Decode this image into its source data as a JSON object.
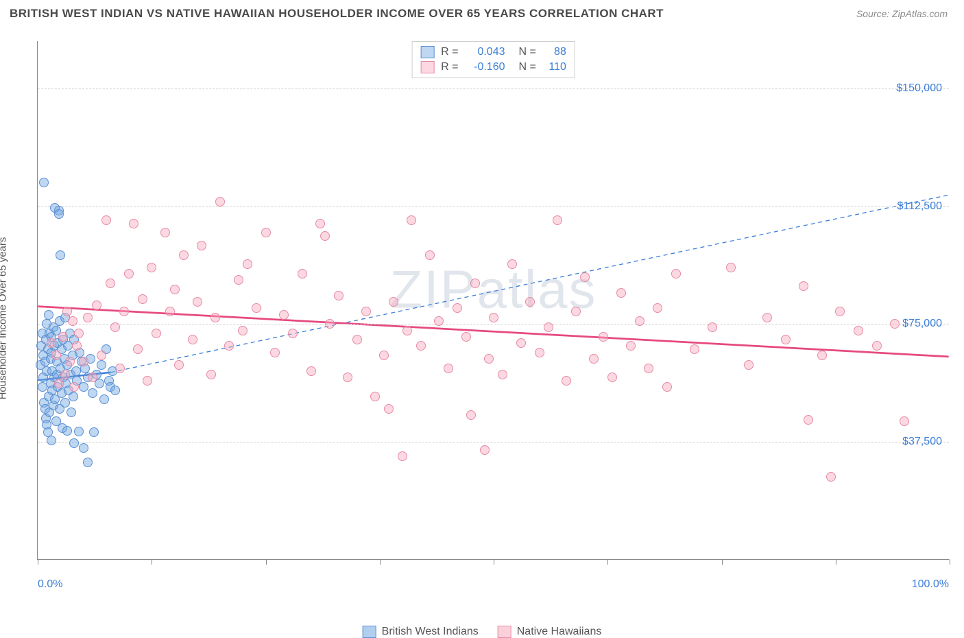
{
  "header": {
    "title": "BRITISH WEST INDIAN VS NATIVE HAWAIIAN HOUSEHOLDER INCOME OVER 65 YEARS CORRELATION CHART",
    "source": "Source: ZipAtlas.com"
  },
  "watermark": "ZIPatlas",
  "chart": {
    "type": "scatter",
    "background_color": "#ffffff",
    "grid_color": "#d0d0d0",
    "axis_color": "#888888",
    "label_color": "#3b7dd8",
    "label_fontsize": 16,
    "yaxis_title": "Householder Income Over 65 years",
    "yaxis_title_fontsize": 15,
    "xlim": [
      0,
      100
    ],
    "ylim": [
      0,
      165000
    ],
    "x_ticks": [
      0,
      12.5,
      25,
      37.5,
      50,
      62.5,
      75,
      87.5,
      100
    ],
    "x_tick_labels": {
      "0": "0.0%",
      "100": "100.0%"
    },
    "y_gridlines": [
      37500,
      75000,
      112500,
      150000
    ],
    "y_tick_labels": {
      "37500": "$37,500",
      "75000": "$75,000",
      "112500": "$112,500",
      "150000": "$150,000"
    },
    "marker_radius": 7,
    "marker_stroke_width": 1.2,
    "series": [
      {
        "name": "British West Indians",
        "fill_color": "rgba(114,166,225,0.45)",
        "stroke_color": "#5a8fd4",
        "r_value": "0.043",
        "n_value": "88",
        "trend": {
          "x1": 0,
          "y1": 57000,
          "x2": 8,
          "y2": 59500,
          "solid_until_x": 8,
          "dash_to_x": 100,
          "y_at_100": 116000,
          "color": "#3b7dd8",
          "width": 2.5,
          "dash": "6,5"
        },
        "points": [
          [
            0.3,
            62000
          ],
          [
            0.4,
            68000
          ],
          [
            0.5,
            55000
          ],
          [
            0.5,
            72000
          ],
          [
            0.6,
            58000
          ],
          [
            0.6,
            65000
          ],
          [
            0.7,
            50000
          ],
          [
            0.7,
            120000
          ],
          [
            0.8,
            48000
          ],
          [
            0.8,
            63000
          ],
          [
            0.9,
            45000
          ],
          [
            0.9,
            70000
          ],
          [
            1.0,
            43000
          ],
          [
            1.0,
            75000
          ],
          [
            1.0,
            60000
          ],
          [
            1.1,
            40500
          ],
          [
            1.1,
            67000
          ],
          [
            1.2,
            52000
          ],
          [
            1.2,
            78000
          ],
          [
            1.3,
            47000
          ],
          [
            1.3,
            72000
          ],
          [
            1.4,
            56000
          ],
          [
            1.4,
            64000
          ],
          [
            1.5,
            38000
          ],
          [
            1.5,
            66000
          ],
          [
            1.5,
            71000
          ],
          [
            1.6,
            54000
          ],
          [
            1.6,
            60000
          ],
          [
            1.7,
            49000
          ],
          [
            1.7,
            74000
          ],
          [
            1.8,
            58000
          ],
          [
            1.8,
            68000
          ],
          [
            1.9,
            112000
          ],
          [
            1.9,
            51000
          ],
          [
            2.0,
            44000
          ],
          [
            2.0,
            73000
          ],
          [
            2.1,
            59000
          ],
          [
            2.1,
            63000
          ],
          [
            2.2,
            55000
          ],
          [
            2.2,
            69000
          ],
          [
            2.3,
            111000
          ],
          [
            2.3,
            110000
          ],
          [
            2.4,
            48000
          ],
          [
            2.4,
            76000
          ],
          [
            2.5,
            61000
          ],
          [
            2.5,
            97000
          ],
          [
            2.6,
            53000
          ],
          [
            2.6,
            67000
          ],
          [
            2.7,
            42000
          ],
          [
            2.8,
            70000
          ],
          [
            2.8,
            58000
          ],
          [
            2.9,
            64000
          ],
          [
            3.0,
            50000
          ],
          [
            3.0,
            77000
          ],
          [
            3.1,
            56000
          ],
          [
            3.2,
            62000
          ],
          [
            3.2,
            41000
          ],
          [
            3.3,
            68000
          ],
          [
            3.4,
            54000
          ],
          [
            3.5,
            72000
          ],
          [
            3.6,
            59000
          ],
          [
            3.7,
            47000
          ],
          [
            3.8,
            65000
          ],
          [
            3.9,
            52000
          ],
          [
            4.0,
            70000
          ],
          [
            4.0,
            37000
          ],
          [
            4.2,
            60000
          ],
          [
            4.3,
            57000
          ],
          [
            4.5,
            40800
          ],
          [
            4.6,
            66000
          ],
          [
            4.8,
            63000
          ],
          [
            5.0,
            55000
          ],
          [
            5.0,
            35500
          ],
          [
            5.2,
            61000
          ],
          [
            5.5,
            58000
          ],
          [
            5.5,
            31000
          ],
          [
            5.8,
            64000
          ],
          [
            6.0,
            53000
          ],
          [
            6.2,
            40500
          ],
          [
            6.5,
            59000
          ],
          [
            6.8,
            56000
          ],
          [
            7.0,
            62000
          ],
          [
            7.3,
            51000
          ],
          [
            7.5,
            67000
          ],
          [
            7.8,
            57000
          ],
          [
            8.0,
            55000
          ],
          [
            8.2,
            60000
          ],
          [
            8.5,
            54000
          ]
        ]
      },
      {
        "name": "Native Hawaiians",
        "fill_color": "rgba(248,170,190,0.45)",
        "stroke_color": "#e68aa4",
        "r_value": "-0.160",
        "n_value": "110",
        "trend": {
          "x1": 0,
          "y1": 80500,
          "x2": 100,
          "y2": 64500,
          "color": "#e64980",
          "width": 2.8
        },
        "points": [
          [
            1.5,
            69000
          ],
          [
            2.0,
            65000
          ],
          [
            2.3,
            56000
          ],
          [
            2.8,
            71000
          ],
          [
            3.0,
            59000
          ],
          [
            3.2,
            79000
          ],
          [
            3.5,
            63000
          ],
          [
            3.8,
            76000
          ],
          [
            4.0,
            55000
          ],
          [
            4.3,
            68000
          ],
          [
            4.5,
            72000
          ],
          [
            5.0,
            63000
          ],
          [
            5.5,
            77000
          ],
          [
            6.0,
            58000
          ],
          [
            6.5,
            81000
          ],
          [
            7.0,
            65000
          ],
          [
            7.5,
            108000
          ],
          [
            8.0,
            88000
          ],
          [
            8.5,
            74000
          ],
          [
            9.0,
            61000
          ],
          [
            9.5,
            79000
          ],
          [
            10.0,
            91000
          ],
          [
            10.5,
            107000
          ],
          [
            11.0,
            67000
          ],
          [
            11.5,
            83000
          ],
          [
            12.0,
            57000
          ],
          [
            12.5,
            93000
          ],
          [
            13.0,
            72000
          ],
          [
            14.0,
            104000
          ],
          [
            14.5,
            79000
          ],
          [
            15.0,
            86000
          ],
          [
            15.5,
            62000
          ],
          [
            16.0,
            97000
          ],
          [
            17.0,
            70000
          ],
          [
            17.5,
            82000
          ],
          [
            18.0,
            100000
          ],
          [
            19.0,
            59000
          ],
          [
            19.5,
            77000
          ],
          [
            20.0,
            114000
          ],
          [
            21.0,
            68000
          ],
          [
            22.0,
            89000
          ],
          [
            22.5,
            73000
          ],
          [
            23.0,
            94000
          ],
          [
            24.0,
            80000
          ],
          [
            25.0,
            104000
          ],
          [
            26.0,
            66000
          ],
          [
            27.0,
            78000
          ],
          [
            28.0,
            72000
          ],
          [
            29.0,
            91000
          ],
          [
            30.0,
            60000
          ],
          [
            31.0,
            107000
          ],
          [
            31.5,
            103000
          ],
          [
            32.0,
            75000
          ],
          [
            33.0,
            84000
          ],
          [
            34.0,
            58000
          ],
          [
            35.0,
            70000
          ],
          [
            36.0,
            79000
          ],
          [
            37.0,
            52000
          ],
          [
            38.0,
            65000
          ],
          [
            38.5,
            48000
          ],
          [
            39.0,
            82000
          ],
          [
            40.0,
            33000
          ],
          [
            40.5,
            73000
          ],
          [
            41.0,
            108000
          ],
          [
            42.0,
            68000
          ],
          [
            43.0,
            97000
          ],
          [
            44.0,
            76000
          ],
          [
            45.0,
            61000
          ],
          [
            46.0,
            80000
          ],
          [
            47.0,
            71000
          ],
          [
            47.5,
            46000
          ],
          [
            48.0,
            88000
          ],
          [
            49.0,
            35000
          ],
          [
            49.5,
            64000
          ],
          [
            50.0,
            77000
          ],
          [
            51.0,
            59000
          ],
          [
            52.0,
            94000
          ],
          [
            53.0,
            69000
          ],
          [
            54.0,
            82000
          ],
          [
            55.0,
            66000
          ],
          [
            56.0,
            74000
          ],
          [
            57.0,
            108000
          ],
          [
            58.0,
            57000
          ],
          [
            59.0,
            79000
          ],
          [
            60.0,
            90000
          ],
          [
            61.0,
            64000
          ],
          [
            62.0,
            71000
          ],
          [
            63.0,
            58000
          ],
          [
            64.0,
            85000
          ],
          [
            65.0,
            68000
          ],
          [
            66.0,
            76000
          ],
          [
            67.0,
            61000
          ],
          [
            68.0,
            80000
          ],
          [
            69.0,
            55000
          ],
          [
            70.0,
            91000
          ],
          [
            72.0,
            67000
          ],
          [
            74.0,
            74000
          ],
          [
            76.0,
            93000
          ],
          [
            78.0,
            62000
          ],
          [
            80.0,
            77000
          ],
          [
            82.0,
            70000
          ],
          [
            84.0,
            87000
          ],
          [
            84.5,
            44500
          ],
          [
            86.0,
            65000
          ],
          [
            87.0,
            26500
          ],
          [
            88.0,
            79000
          ],
          [
            90.0,
            73000
          ],
          [
            92.0,
            68000
          ],
          [
            94.0,
            75000
          ],
          [
            95.0,
            44000
          ]
        ]
      }
    ],
    "stats_box": {
      "r_label": "R =",
      "n_label": "N ="
    },
    "bottom_legend": [
      {
        "label": "British West Indians",
        "fill": "rgba(114,166,225,0.55)",
        "stroke": "#5a8fd4"
      },
      {
        "label": "Native Hawaiians",
        "fill": "rgba(248,170,190,0.55)",
        "stroke": "#e68aa4"
      }
    ]
  }
}
